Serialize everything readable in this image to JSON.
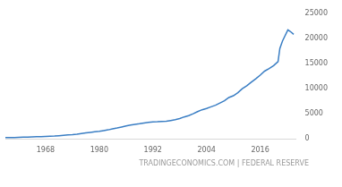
{
  "chart_data": {
    "type": "line",
    "source": "TRADINGECONOMICS.COM | FEDERAL RESERVE",
    "x": [
      1959,
      1960,
      1961,
      1962,
      1963,
      1964,
      1965,
      1966,
      1967,
      1968,
      1969,
      1970,
      1971,
      1972,
      1973,
      1974,
      1975,
      1976,
      1977,
      1978,
      1979,
      1980,
      1981,
      1982,
      1983,
      1984,
      1985,
      1986,
      1987,
      1988,
      1989,
      1990,
      1991,
      1992,
      1993,
      1994,
      1995,
      1996,
      1997,
      1998,
      1999,
      2000,
      2001,
      2002,
      2003,
      2004,
      2005,
      2006,
      2007,
      2008,
      2009,
      2010,
      2011,
      2012,
      2013,
      2014,
      2015,
      2016,
      2017,
      2018,
      2019,
      2020,
      2020.4,
      2021,
      2022.2,
      2022.7,
      2023.5
    ],
    "values": [
      290,
      300,
      315,
      340,
      365,
      390,
      425,
      450,
      480,
      525,
      560,
      590,
      670,
      750,
      820,
      880,
      960,
      1080,
      1210,
      1320,
      1430,
      1540,
      1680,
      1830,
      2030,
      2200,
      2400,
      2610,
      2770,
      2900,
      3030,
      3200,
      3330,
      3420,
      3440,
      3490,
      3540,
      3680,
      3840,
      4080,
      4400,
      4650,
      5020,
      5450,
      5820,
      6080,
      6400,
      6720,
      7150,
      7600,
      8250,
      8600,
      9200,
      10000,
      10600,
      11300,
      11950,
      12700,
      13500,
      14000,
      14600,
      15400,
      18000,
      19500,
      21700,
      21400,
      20800
    ],
    "color": "#3a7ec4",
    "xlim": [
      1959,
      2024
    ],
    "xticks": [
      1968,
      1980,
      1992,
      2004,
      2016
    ],
    "ylim": [
      0,
      25000
    ],
    "yticks": [
      0,
      5000,
      10000,
      15000,
      20000,
      25000
    ],
    "grid": false
  }
}
